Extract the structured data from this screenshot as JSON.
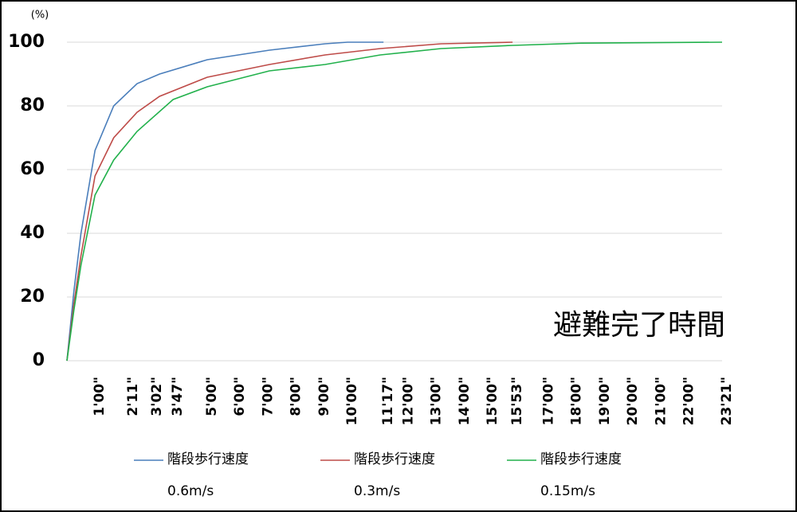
{
  "chart_data": {
    "type": "line",
    "y_unit": "(%)",
    "annotation": "避難完了時間",
    "xlim": [
      0,
      1401
    ],
    "ylim": [
      0,
      100
    ],
    "yticks": [
      0,
      20,
      40,
      60,
      80,
      100
    ],
    "xticks": [
      {
        "value": 60,
        "label": "1'00\""
      },
      {
        "value": 131,
        "label": "2'11\""
      },
      {
        "value": 182,
        "label": "3'02\""
      },
      {
        "value": 227,
        "label": "3'47\""
      },
      {
        "value": 300,
        "label": "5'00\""
      },
      {
        "value": 360,
        "label": "6'00\""
      },
      {
        "value": 420,
        "label": "7'00\""
      },
      {
        "value": 480,
        "label": "8'00\""
      },
      {
        "value": 540,
        "label": "9'00\""
      },
      {
        "value": 600,
        "label": "10'00\""
      },
      {
        "value": 677,
        "label": "11'17\""
      },
      {
        "value": 720,
        "label": "12'00\""
      },
      {
        "value": 780,
        "label": "13'00\""
      },
      {
        "value": 840,
        "label": "14'00\""
      },
      {
        "value": 900,
        "label": "15'00\""
      },
      {
        "value": 953,
        "label": "15'53\""
      },
      {
        "value": 1020,
        "label": "17'00\""
      },
      {
        "value": 1080,
        "label": "18'00\""
      },
      {
        "value": 1140,
        "label": "19'00\""
      },
      {
        "value": 1200,
        "label": "20'00\""
      },
      {
        "value": 1260,
        "label": "21'00\""
      },
      {
        "value": 1320,
        "label": "22'00\""
      },
      {
        "value": 1401,
        "label": "23'21\""
      }
    ],
    "grid": true,
    "series": [
      {
        "name": "階段歩行速度",
        "speed": "0.6m/s",
        "color": "#4a7ebb",
        "x": [
          0,
          15,
          30,
          60,
          100,
          150,
          198,
          300,
          433,
          552,
          600,
          677
        ],
        "values": [
          0,
          22,
          40,
          66,
          80,
          87,
          90,
          94.5,
          97.5,
          99.5,
          100,
          100
        ]
      },
      {
        "name": "階段歩行速度",
        "speed": "0.3m/s",
        "color": "#be4b48",
        "x": [
          0,
          15,
          30,
          60,
          100,
          150,
          198,
          300,
          433,
          552,
          670,
          800,
          953
        ],
        "values": [
          0,
          18,
          33,
          58,
          70,
          78,
          83,
          89,
          93,
          96,
          98,
          99.5,
          100
        ]
      },
      {
        "name": "階段歩行速度",
        "speed": "0.15m/s",
        "color": "#22b14c",
        "x": [
          0,
          15,
          30,
          60,
          100,
          150,
          227,
          300,
          433,
          552,
          670,
          800,
          953,
          1100,
          1401
        ],
        "values": [
          0,
          16,
          30,
          52,
          63,
          72,
          82,
          86,
          91,
          93,
          96,
          98,
          99,
          99.7,
          100
        ]
      }
    ]
  }
}
